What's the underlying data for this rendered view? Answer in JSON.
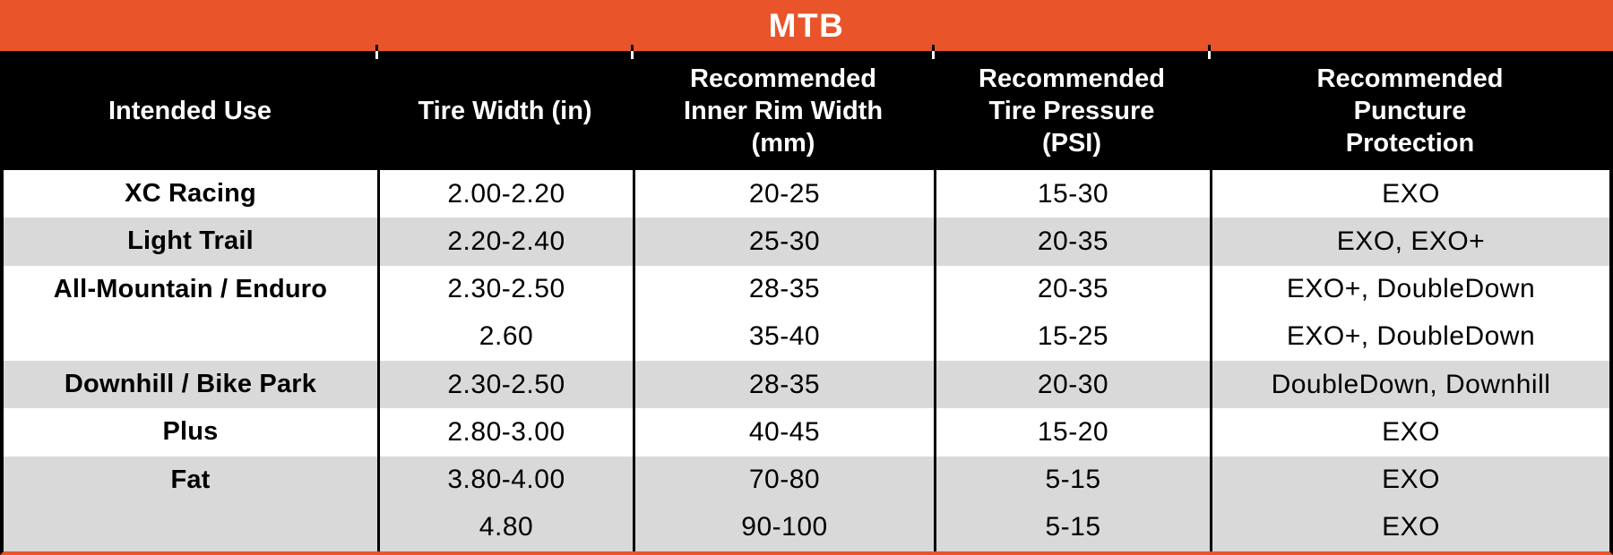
{
  "title": "MTB",
  "accent_color": "#E9542A",
  "header_bg_color": "#000000",
  "row_alt_color": "#D9D9D9",
  "columns": [
    {
      "label": "Intended Use"
    },
    {
      "label": "Tire Width (in)"
    },
    {
      "label": "Recommended\nInner Rim Width\n(mm)"
    },
    {
      "label": "Recommended\nTire Pressure\n(PSI)"
    },
    {
      "label": "Recommended\nPuncture\nProtection"
    }
  ],
  "sections": [
    {
      "use": "XC Racing",
      "shade": "white",
      "rows": [
        [
          "2.00-2.20",
          "20-25",
          "15-30",
          "EXO"
        ]
      ]
    },
    {
      "use": "Light Trail",
      "shade": "gray",
      "rows": [
        [
          "2.20-2.40",
          "25-30",
          "20-35",
          "EXO, EXO+"
        ]
      ]
    },
    {
      "use": "All-Mountain / Enduro",
      "shade": "white",
      "rows": [
        [
          "2.30-2.50",
          "28-35",
          "20-35",
          "EXO+, DoubleDown"
        ],
        [
          "2.60",
          "35-40",
          "15-25",
          "EXO+, DoubleDown"
        ]
      ]
    },
    {
      "use": "Downhill / Bike Park",
      "shade": "gray",
      "rows": [
        [
          "2.30-2.50",
          "28-35",
          "20-30",
          "DoubleDown, Downhill"
        ]
      ]
    },
    {
      "use": "Plus",
      "shade": "white",
      "rows": [
        [
          "2.80-3.00",
          "40-45",
          "15-20",
          "EXO"
        ]
      ]
    },
    {
      "use": "Fat",
      "shade": "gray",
      "rows": [
        [
          "3.80-4.00",
          "70-80",
          "5-15",
          "EXO"
        ],
        [
          "4.80",
          "90-100",
          "5-15",
          "EXO"
        ]
      ]
    }
  ],
  "chart_data": {
    "type": "table",
    "title": "MTB",
    "columns": [
      "Intended Use",
      "Tire Width (in)",
      "Recommended Inner Rim Width (mm)",
      "Recommended Tire Pressure (PSI)",
      "Recommended Puncture Protection"
    ],
    "rows": [
      [
        "XC Racing",
        "2.00-2.20",
        "20-25",
        "15-30",
        "EXO"
      ],
      [
        "Light Trail",
        "2.20-2.40",
        "25-30",
        "20-35",
        "EXO, EXO+"
      ],
      [
        "All-Mountain / Enduro",
        "2.30-2.50",
        "28-35",
        "20-35",
        "EXO+, DoubleDown"
      ],
      [
        "",
        "2.60",
        "35-40",
        "15-25",
        "EXO+, DoubleDown"
      ],
      [
        "Downhill / Bike Park",
        "2.30-2.50",
        "28-35",
        "20-30",
        "DoubleDown, Downhill"
      ],
      [
        "Plus",
        "2.80-3.00",
        "40-45",
        "15-20",
        "EXO"
      ],
      [
        "Fat",
        "3.80-4.00",
        "70-80",
        "5-15",
        "EXO"
      ],
      [
        "",
        "4.80",
        "90-100",
        "5-15",
        "EXO"
      ]
    ]
  }
}
